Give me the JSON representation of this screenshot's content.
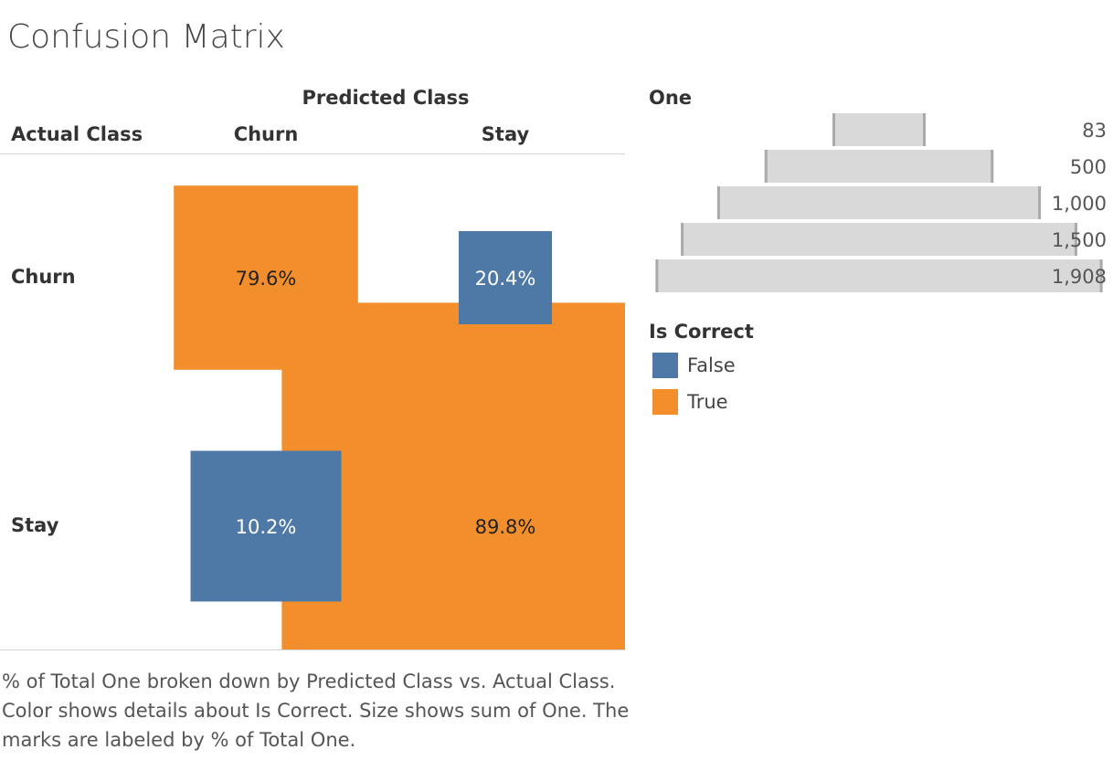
{
  "chart_data": {
    "type": "size_matrix",
    "title": "Confusion Matrix",
    "column_title": "Predicted Class",
    "row_title": "Actual Class",
    "columns": [
      "Churn",
      "Stay"
    ],
    "rows": [
      "Churn",
      "Stay"
    ],
    "values": [
      [
        79.6,
        20.4
      ],
      [
        10.2,
        89.8
      ]
    ],
    "value_labels": [
      [
        "79.6%",
        "20.4%"
      ],
      [
        "10.2%",
        "89.8%"
      ]
    ],
    "sizes": [
      [
        324,
        83
      ],
      [
        217,
        1908
      ]
    ],
    "colors": [
      [
        "#f28e2b",
        "#4e79a7"
      ],
      [
        "#4e79a7",
        "#f28e2b"
      ]
    ],
    "size_legend": {
      "title": "One",
      "values": [
        83,
        500,
        {
          "value": 1000,
          "label": "1,000"
        },
        {
          "value": 1500,
          "label": "1,500"
        },
        {
          "value": 1908,
          "label": "1,908"
        }
      ]
    },
    "color_legend": {
      "title": "Is Correct",
      "items": [
        {
          "name": "False",
          "color": "#4e79a7"
        },
        {
          "name": "True",
          "color": "#f28e2b"
        }
      ]
    },
    "caption": "% of Total One broken down by Predicted Class vs. Actual Class.  Color shows details about Is Correct.  Size shows sum of One.  The marks are labeled by % of Total One."
  }
}
